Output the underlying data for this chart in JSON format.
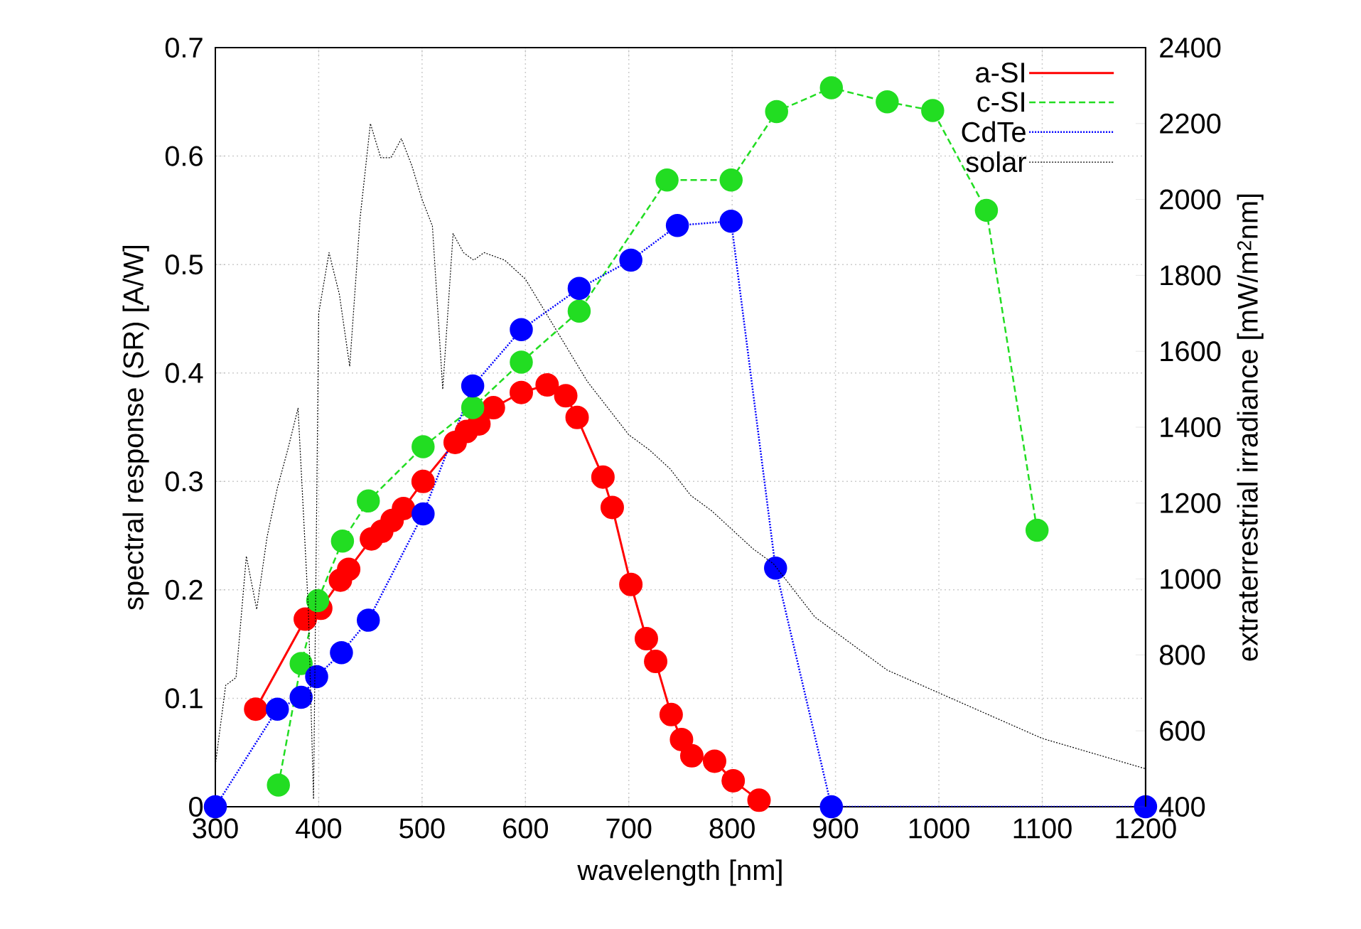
{
  "chart_data": {
    "type": "line",
    "xlabel": "wavelength [nm]",
    "ylabel": "spectral response (SR) [A/W]",
    "y2label": "extraterrestrial irradiance [mW/m$^{2}$nm]",
    "xlim": [
      300,
      1200
    ],
    "xticks": [
      300,
      400,
      500,
      600,
      700,
      800,
      900,
      1000,
      1100,
      1200
    ],
    "ylim": [
      0,
      0.7
    ],
    "yticks": [
      0,
      0.1,
      0.2,
      0.3,
      0.4,
      0.5,
      0.6,
      0.7
    ],
    "y2lim": [
      400,
      2400
    ],
    "y2ticks": [
      400,
      600,
      800,
      1000,
      1200,
      1400,
      1600,
      1800,
      2000,
      2200,
      2400
    ],
    "grid": true,
    "legend": "top right",
    "series": [
      {
        "name": "a-SI",
        "color": "#ff0000",
        "marker": "circle",
        "line_style": "solid",
        "x": [
          339,
          387,
          402,
          421,
          429,
          451,
          461,
          471,
          482,
          501,
          532,
          543,
          555,
          569,
          596,
          621,
          639,
          650,
          675,
          684,
          702,
          717,
          726,
          741,
          751,
          761,
          783,
          801,
          826
        ],
        "values": [
          0.09,
          0.173,
          0.183,
          0.209,
          0.219,
          0.247,
          0.254,
          0.264,
          0.275,
          0.3,
          0.336,
          0.346,
          0.353,
          0.368,
          0.382,
          0.389,
          0.379,
          0.359,
          0.304,
          0.276,
          0.205,
          0.155,
          0.134,
          0.085,
          0.062,
          0.047,
          0.042,
          0.024,
          0.006
        ]
      },
      {
        "name": "c-SI",
        "color": "#22dd22",
        "marker": "circle",
        "line_style": "dashed",
        "x": [
          361,
          383,
          399,
          423,
          448,
          501,
          549,
          596,
          652,
          737,
          799,
          843,
          896,
          950,
          994,
          1046,
          1095
        ],
        "values": [
          0.02,
          0.132,
          0.19,
          0.245,
          0.282,
          0.332,
          0.368,
          0.41,
          0.457,
          0.578,
          0.578,
          0.641,
          0.663,
          0.65,
          0.642,
          0.55,
          0.255
        ]
      },
      {
        "name": "CdTe",
        "color": "#0000ff",
        "marker": "circle",
        "line_style": "dotted",
        "x": [
          300,
          360,
          383,
          398,
          422,
          448,
          501,
          549,
          596,
          652,
          702,
          747,
          799,
          842,
          896,
          1200
        ],
        "values": [
          0,
          0.09,
          0.101,
          0.12,
          0.142,
          0.172,
          0.27,
          0.388,
          0.44,
          0.478,
          0.504,
          0.536,
          0.54,
          0.22,
          0,
          0
        ]
      },
      {
        "name": "solar",
        "color": "#000000",
        "marker": "none",
        "line_style": "dotted",
        "axis": "y2",
        "x": [
          300,
          310,
          320,
          330,
          340,
          350,
          360,
          370,
          380,
          390,
          395,
          400,
          410,
          420,
          430,
          440,
          450,
          460,
          470,
          480,
          490,
          500,
          510,
          520,
          530,
          540,
          550,
          560,
          580,
          600,
          620,
          640,
          660,
          680,
          700,
          720,
          740,
          760,
          780,
          800,
          820,
          840,
          860,
          880,
          900,
          950,
          1000,
          1050,
          1100,
          1150,
          1200
        ],
        "values": [
          510,
          720,
          740,
          1060,
          920,
          1110,
          1240,
          1340,
          1450,
          920,
          420,
          1700,
          1860,
          1750,
          1560,
          1950,
          2200,
          2110,
          2110,
          2160,
          2090,
          2000,
          1930,
          1500,
          1910,
          1860,
          1840,
          1860,
          1840,
          1790,
          1700,
          1610,
          1520,
          1450,
          1380,
          1340,
          1290,
          1220,
          1180,
          1130,
          1080,
          1040,
          970,
          900,
          860,
          760,
          700,
          640,
          580,
          540,
          500
        ]
      }
    ]
  }
}
